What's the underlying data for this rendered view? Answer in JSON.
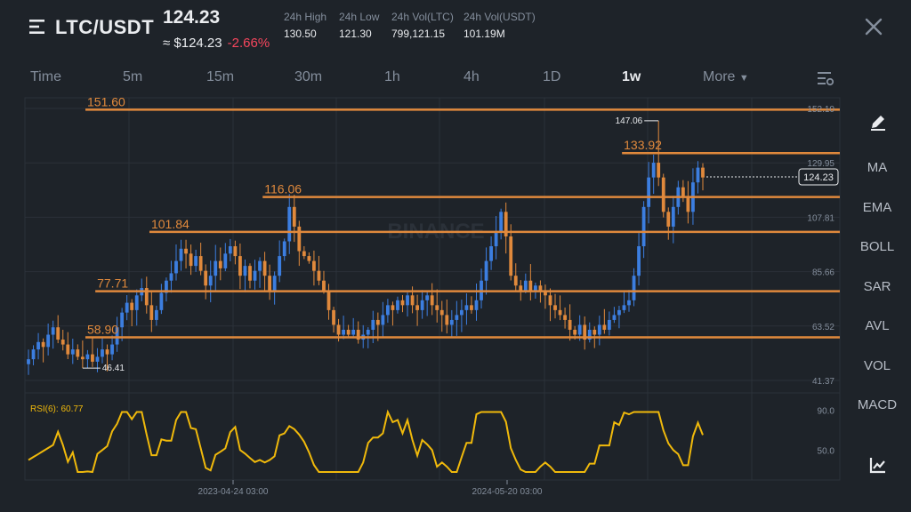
{
  "header": {
    "pair": "LTC/USDT",
    "last_price": "124.23",
    "approx_value": "≈ $124.23",
    "change_pct": "-2.66%",
    "stats": [
      {
        "label": "24h High",
        "value": "130.50"
      },
      {
        "label": "24h Low",
        "value": "121.30"
      },
      {
        "label": "24h Vol(LTC)",
        "value": "799,121.15"
      },
      {
        "label": "24h Vol(USDT)",
        "value": "101.19M"
      }
    ]
  },
  "tabs": [
    "Time",
    "5m",
    "15m",
    "30m",
    "1h",
    "4h",
    "1D",
    "1w",
    "More"
  ],
  "active_tab": "1w",
  "sidebar": [
    "MA",
    "EMA",
    "BOLL",
    "SAR",
    "AVL",
    "VOL",
    "MACD"
  ],
  "colors": {
    "up": "#3c7ee0",
    "down": "#e0893c",
    "level": "#e0893c",
    "rsi": "#f0b90b",
    "background": "#1e2329"
  },
  "watermark": "BINANCE",
  "chart_data": [
    {
      "type": "candlestick",
      "y_ticks": [
        "152.10",
        "129.95",
        "107.81",
        "85.66",
        "63.52",
        "41.37"
      ],
      "ylim": [
        41.37,
        152.1
      ],
      "x_ticks": [
        "2023-04-24 03:00",
        "2024-05-20 03:00"
      ],
      "current_price_label": "124.23",
      "current_price": 124.23,
      "high_marker": "147.06",
      "low_marker": "46.41",
      "levels": [
        {
          "label": "151.60",
          "value": 151.6
        },
        {
          "label": "133.92",
          "value": 133.92
        },
        {
          "label": "116.06",
          "value": 116.06
        },
        {
          "label": "101.84",
          "value": 101.84
        },
        {
          "label": "77.71",
          "value": 77.71
        },
        {
          "label": "58.90",
          "value": 58.9
        }
      ],
      "closes": [
        50,
        54,
        57,
        55,
        60,
        63,
        58,
        56,
        52,
        54,
        51,
        50,
        52,
        49,
        51,
        54,
        52,
        56,
        63,
        69,
        73,
        70,
        76,
        79,
        72,
        66,
        70,
        77,
        82,
        85,
        90,
        95,
        93,
        88,
        92,
        86,
        80,
        84,
        90,
        87,
        93,
        96,
        92,
        84,
        88,
        82,
        86,
        90,
        84,
        78,
        84,
        92,
        98,
        112,
        104,
        94,
        92,
        90,
        86,
        82,
        78,
        70,
        64,
        60,
        62,
        60,
        62,
        58,
        60,
        62,
        66,
        64,
        68,
        72,
        70,
        74,
        72,
        76,
        72,
        70,
        74,
        76,
        72,
        70,
        68,
        64,
        66,
        68,
        70,
        72,
        70,
        74,
        82,
        90,
        96,
        102,
        110,
        100,
        84,
        80,
        78,
        82,
        78,
        80,
        78,
        76,
        72,
        70,
        68,
        66,
        62,
        60,
        64,
        58,
        62,
        60,
        64,
        62,
        66,
        68,
        70,
        72,
        74,
        84,
        96,
        112,
        124,
        130,
        124,
        110,
        104,
        112,
        120,
        116,
        110,
        122,
        128,
        124
      ]
    },
    {
      "type": "line",
      "label": "RSI(6): 60.77",
      "y_ticks": [
        "90.0",
        "50.0"
      ],
      "ylim": [
        20,
        100
      ]
    }
  ]
}
